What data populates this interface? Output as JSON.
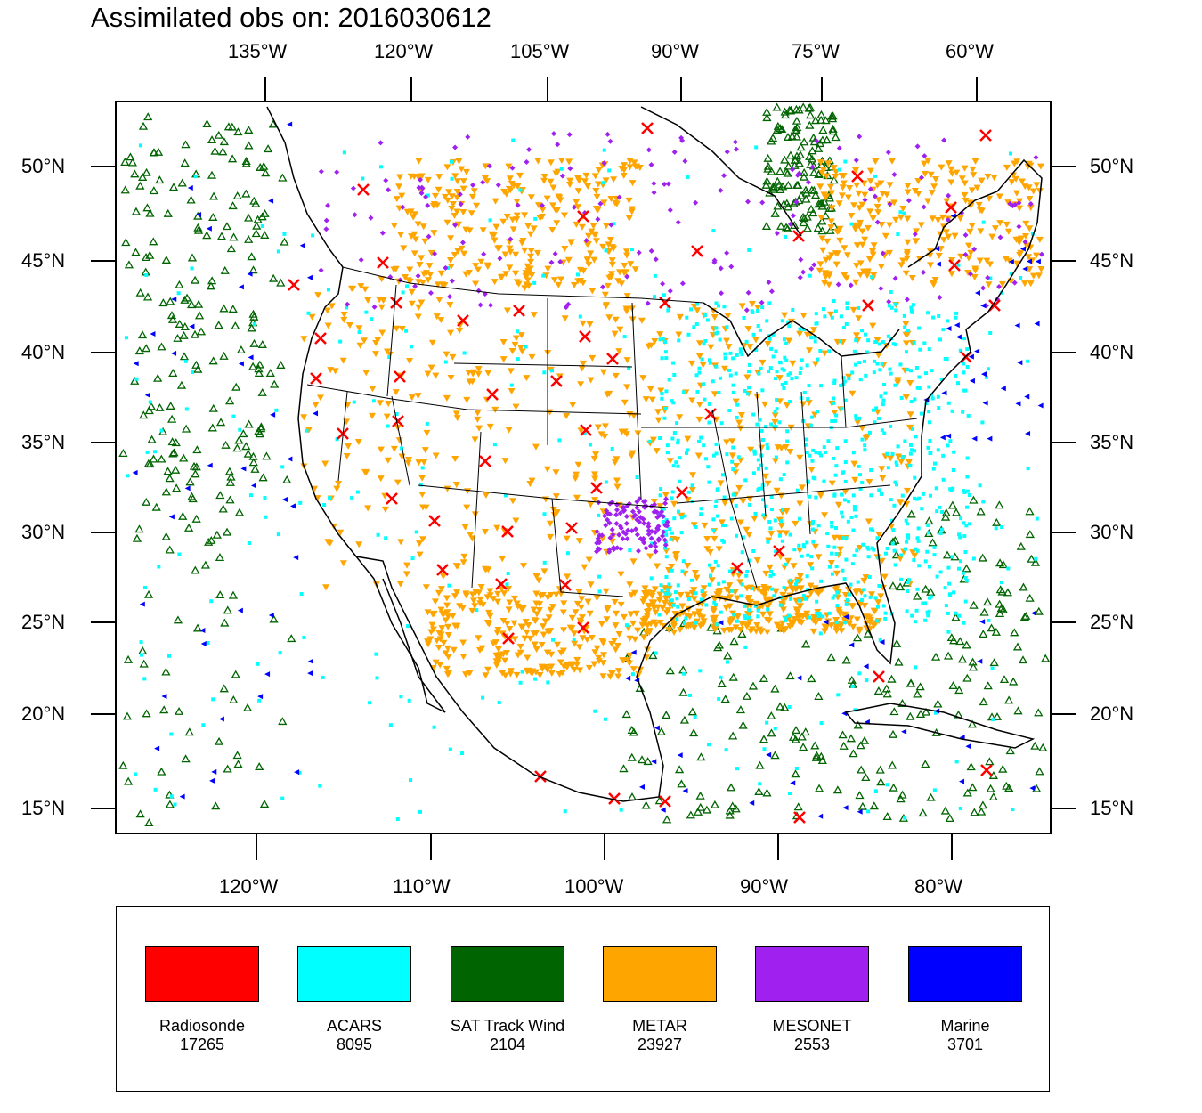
{
  "title": "Assimilated obs on: 2016030612",
  "top_lon_labels": [
    "135°W",
    "120°W",
    "105°W",
    "90°W",
    "75°W",
    "60°W"
  ],
  "bottom_lon_labels": [
    "120°W",
    "110°W",
    "100°W",
    "90°W",
    "80°W"
  ],
  "lat_labels": [
    "50°N",
    "45°N",
    "40°N",
    "35°N",
    "30°N",
    "25°N",
    "20°N",
    "15°N"
  ],
  "legend": [
    {
      "name": "Radiosonde",
      "count": "17265",
      "color": "#ff0000"
    },
    {
      "name": "ACARS",
      "count": "8095",
      "color": "#00ffff"
    },
    {
      "name": "SAT Track Wind",
      "count": "2104",
      "color": "#006400"
    },
    {
      "name": "METAR",
      "count": "23927",
      "color": "#ffa500"
    },
    {
      "name": "MESONET",
      "count": "2553",
      "color": "#a020f0"
    },
    {
      "name": "Marine",
      "count": "3701",
      "color": "#0000ff"
    }
  ]
}
